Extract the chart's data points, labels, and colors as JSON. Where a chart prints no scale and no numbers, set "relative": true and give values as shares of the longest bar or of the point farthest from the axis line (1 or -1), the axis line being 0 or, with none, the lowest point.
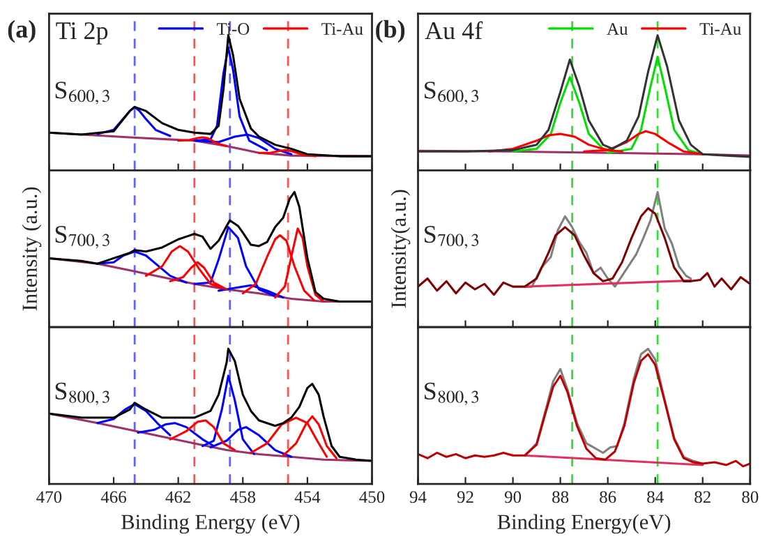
{
  "chart_data": [
    {
      "type": "line",
      "relative": true,
      "annotations": [
        "(a)",
        "Ti 2p",
        "S$_{600,3}$"
      ],
      "xlim": [
        470,
        450
      ],
      "xticks": [
        470,
        466,
        462,
        458,
        454,
        450
      ],
      "tick_labels": false,
      "legend": "top right",
      "grid": false,
      "ref_lines": [
        {
          "axis": "x",
          "value": 464.7,
          "color": "#6060ff",
          "line_style": "dashed"
        },
        {
          "axis": "x",
          "value": 461.0,
          "color": "#ff5050",
          "line_style": "dashed"
        },
        {
          "axis": "x",
          "value": 458.8,
          "color": "#6060ff",
          "line_style": "dashed"
        },
        {
          "axis": "x",
          "value": 455.2,
          "color": "#ff5050",
          "line_style": "dashed"
        }
      ],
      "series": [
        {
          "color": "#a0306a",
          "x": [
            470,
            465,
            461,
            459,
            457,
            455,
            450
          ],
          "values": [
            0.28,
            0.245,
            0.22,
            0.18,
            0.13,
            0.11,
            0.105
          ]
        },
        {
          "color": "#0000ff",
          "x": [
            467,
            466,
            465.5,
            465,
            464.7,
            464.4,
            464,
            463.4,
            462.5
          ],
          "values": [
            0.27,
            0.3,
            0.37,
            0.44,
            0.47,
            0.44,
            0.38,
            0.3,
            0.255
          ]
        },
        {
          "name": "Ti-O",
          "color": "#0000ff",
          "x": [
            461,
            460,
            459.6,
            459.2,
            458.9,
            458.6,
            458.2,
            457.6,
            456.5
          ],
          "values": [
            0.22,
            0.23,
            0.33,
            0.72,
            0.91,
            0.74,
            0.4,
            0.22,
            0.15
          ]
        },
        {
          "color": "#0000ff",
          "x": [
            461,
            459.5,
            458.5,
            457.7,
            457,
            456,
            455
          ],
          "values": [
            0.22,
            0.21,
            0.25,
            0.265,
            0.24,
            0.16,
            0.12
          ]
        },
        {
          "name": "Ti-Au",
          "color": "#ff0000",
          "x": [
            462,
            461.3,
            460.8,
            460.5,
            460.2,
            459.6,
            459
          ],
          "values": [
            0.22,
            0.225,
            0.24,
            0.245,
            0.24,
            0.2,
            0.18
          ]
        },
        {
          "color": "#ff0000",
          "x": [
            457,
            456.3,
            455.7,
            455.3,
            454.9,
            454.3,
            453.5
          ],
          "values": [
            0.13,
            0.13,
            0.145,
            0.15,
            0.14,
            0.115,
            0.105
          ]
        },
        {
          "color": "#000000",
          "x": [
            470,
            468,
            466,
            465,
            464.7,
            464,
            463,
            462,
            461,
            460,
            459.5,
            459.2,
            458.9,
            458.6,
            458.2,
            457.5,
            457,
            456,
            455,
            454,
            452,
            450
          ],
          "values": [
            0.28,
            0.265,
            0.29,
            0.44,
            0.47,
            0.44,
            0.35,
            0.3,
            0.28,
            0.27,
            0.33,
            0.6,
            1.0,
            0.85,
            0.53,
            0.31,
            0.25,
            0.19,
            0.16,
            0.12,
            0.105,
            0.105
          ]
        }
      ]
    },
    {
      "type": "line",
      "relative": true,
      "annotations": [
        "S$_{700,3}$"
      ],
      "ylabel": "Intensity (a.u.)",
      "xlim": [
        470,
        450
      ],
      "xticks": [
        470,
        466,
        462,
        458,
        454,
        450
      ],
      "tick_labels": false,
      "grid": false,
      "ref_lines": [
        {
          "axis": "x",
          "value": 464.7,
          "color": "#6060ff",
          "line_style": "dashed"
        },
        {
          "axis": "x",
          "value": 461.0,
          "color": "#ff5050",
          "line_style": "dashed"
        },
        {
          "axis": "x",
          "value": 458.8,
          "color": "#6060ff",
          "line_style": "dashed"
        },
        {
          "axis": "x",
          "value": 455.2,
          "color": "#ff5050",
          "line_style": "dashed"
        }
      ],
      "series": [
        {
          "color": "#a0306a",
          "x": [
            470,
            467,
            465,
            463,
            461,
            459,
            457,
            455,
            453,
            450
          ],
          "values": [
            0.51,
            0.47,
            0.42,
            0.37,
            0.32,
            0.28,
            0.25,
            0.21,
            0.19,
            0.19
          ]
        },
        {
          "color": "#0000ff",
          "x": [
            467,
            466,
            465.4,
            464.7,
            464,
            463.3,
            462.5,
            461.5
          ],
          "values": [
            0.47,
            0.48,
            0.53,
            0.56,
            0.53,
            0.46,
            0.38,
            0.33
          ]
        },
        {
          "color": "#0000ff",
          "x": [
            461,
            460,
            459.5,
            458.9,
            458.3,
            457.8,
            457,
            456
          ],
          "values": [
            0.32,
            0.33,
            0.5,
            0.74,
            0.66,
            0.45,
            0.28,
            0.23
          ]
        },
        {
          "color": "#0000ff",
          "x": [
            459.5,
            458.5,
            457.5,
            456.5,
            455.5
          ],
          "values": [
            0.27,
            0.29,
            0.31,
            0.27,
            0.22
          ]
        },
        {
          "color": "#ff0000",
          "x": [
            464,
            463,
            462.4,
            461.9,
            461.4,
            460.7,
            460,
            459.3
          ],
          "values": [
            0.38,
            0.45,
            0.56,
            0.6,
            0.56,
            0.43,
            0.32,
            0.29
          ]
        },
        {
          "color": "#ff0000",
          "x": [
            462.5,
            461.7,
            461.2,
            460.8,
            460.4,
            459.8,
            459
          ],
          "values": [
            0.34,
            0.37,
            0.44,
            0.48,
            0.44,
            0.33,
            0.28
          ]
        },
        {
          "color": "#ff0000",
          "x": [
            458,
            457.2,
            456.5,
            456,
            455.7,
            455.3,
            454.8,
            454.2,
            453.6
          ],
          "values": [
            0.25,
            0.32,
            0.52,
            0.65,
            0.68,
            0.64,
            0.45,
            0.27,
            0.2
          ]
        },
        {
          "color": "#ff0000",
          "x": [
            456,
            455.4,
            455,
            454.6,
            454.3,
            454,
            453.5,
            453
          ],
          "values": [
            0.22,
            0.3,
            0.52,
            0.73,
            0.66,
            0.45,
            0.24,
            0.19
          ]
        },
        {
          "color": "#000000",
          "x": [
            470,
            468,
            467,
            466,
            465,
            464.7,
            464,
            463,
            462,
            461.5,
            461,
            460.5,
            460,
            459.5,
            459,
            458.8,
            458.3,
            458,
            457.5,
            457,
            456.5,
            456,
            455.5,
            455.1,
            454.8,
            454.5,
            454,
            453.5,
            453,
            452,
            450
          ],
          "values": [
            0.51,
            0.49,
            0.47,
            0.51,
            0.55,
            0.57,
            0.56,
            0.59,
            0.65,
            0.67,
            0.69,
            0.67,
            0.58,
            0.64,
            0.75,
            0.79,
            0.75,
            0.7,
            0.61,
            0.6,
            0.63,
            0.74,
            0.81,
            0.95,
            1.0,
            0.89,
            0.51,
            0.26,
            0.21,
            0.19,
            0.19
          ]
        }
      ]
    },
    {
      "type": "line",
      "relative": true,
      "annotations": [
        "S$_{800,3}$"
      ],
      "xlabel": "Binding Energy (eV)",
      "xlim": [
        470,
        450
      ],
      "xticks": [
        470,
        466,
        462,
        458,
        454,
        450
      ],
      "tick_labels": "x",
      "grid": false,
      "ref_lines": [
        {
          "axis": "x",
          "value": 464.7,
          "color": "#6060ff",
          "line_style": "dashed"
        },
        {
          "axis": "x",
          "value": 461.0,
          "color": "#ff5050",
          "line_style": "dashed"
        },
        {
          "axis": "x",
          "value": 458.8,
          "color": "#6060ff",
          "line_style": "dashed"
        },
        {
          "axis": "x",
          "value": 455.2,
          "color": "#ff5050",
          "line_style": "dashed"
        }
      ],
      "series": [
        {
          "color": "#a0306a",
          "x": [
            470,
            467,
            465,
            463,
            461,
            459,
            457,
            455,
            453,
            450
          ],
          "values": [
            0.52,
            0.45,
            0.4,
            0.35,
            0.3,
            0.25,
            0.22,
            0.2,
            0.18,
            0.17
          ]
        },
        {
          "color": "#0000ff",
          "x": [
            467,
            466,
            465.3,
            464.7,
            464,
            463.3,
            462.5
          ],
          "values": [
            0.45,
            0.48,
            0.55,
            0.59,
            0.54,
            0.45,
            0.36
          ]
        },
        {
          "color": "#0000ff",
          "x": [
            464.5,
            463.5,
            462.8,
            462.2,
            461.5,
            460.5,
            459.8
          ],
          "values": [
            0.38,
            0.4,
            0.44,
            0.45,
            0.42,
            0.33,
            0.28
          ]
        },
        {
          "color": "#0000ff",
          "x": [
            460.5,
            459.8,
            459.3,
            458.9,
            458.5,
            458,
            457.3
          ],
          "values": [
            0.28,
            0.32,
            0.55,
            0.8,
            0.62,
            0.33,
            0.22
          ]
        },
        {
          "color": "#0000ff",
          "x": [
            460,
            459,
            458.3,
            457.8,
            457,
            456,
            455
          ],
          "values": [
            0.27,
            0.32,
            0.4,
            0.42,
            0.36,
            0.25,
            0.2
          ]
        },
        {
          "color": "#ff0000",
          "x": [
            462.5,
            461.5,
            460.8,
            460.3,
            459.8,
            459.2,
            458.5
          ],
          "values": [
            0.33,
            0.39,
            0.46,
            0.47,
            0.42,
            0.3,
            0.25
          ]
        },
        {
          "color": "#ff0000",
          "x": [
            457.5,
            456.5,
            455.6,
            454.7,
            454,
            453.4,
            452.8
          ],
          "values": [
            0.23,
            0.3,
            0.44,
            0.49,
            0.45,
            0.32,
            0.2
          ]
        },
        {
          "color": "#ff0000",
          "x": [
            455.5,
            454.7,
            454.1,
            453.7,
            453.3,
            452.8,
            452.2
          ],
          "values": [
            0.21,
            0.3,
            0.44,
            0.5,
            0.44,
            0.28,
            0.19
          ]
        },
        {
          "color": "#000000",
          "x": [
            470,
            468,
            466,
            465,
            464.7,
            464,
            463,
            462,
            461,
            460,
            459.5,
            459,
            458.9,
            458.5,
            458,
            457.5,
            457,
            456,
            455.5,
            455,
            454.5,
            454,
            453.7,
            453.3,
            453,
            452.5,
            452,
            451,
            450
          ],
          "values": [
            0.52,
            0.49,
            0.49,
            0.55,
            0.6,
            0.55,
            0.49,
            0.49,
            0.49,
            0.54,
            0.66,
            0.9,
            1.0,
            0.91,
            0.66,
            0.54,
            0.47,
            0.43,
            0.45,
            0.49,
            0.57,
            0.71,
            0.74,
            0.66,
            0.5,
            0.28,
            0.2,
            0.18,
            0.17
          ]
        }
      ]
    },
    {
      "type": "line",
      "relative": true,
      "annotations": [
        "(b)",
        "Au 4f",
        "S$_{600,3}$"
      ],
      "xlim": [
        94,
        80
      ],
      "xticks": [
        94,
        92,
        90,
        88,
        86,
        84,
        82,
        80
      ],
      "tick_labels": false,
      "legend": "top right",
      "grid": false,
      "ref_lines": [
        {
          "axis": "x",
          "value": 87.5,
          "color": "#30e030",
          "line_style": "dashed"
        },
        {
          "axis": "x",
          "value": 83.9,
          "color": "#30e030",
          "line_style": "dashed"
        }
      ],
      "series": [
        {
          "color": "#a0306a",
          "x": [
            94,
            90,
            86,
            82,
            80
          ],
          "values": [
            0.145,
            0.14,
            0.13,
            0.12,
            0.11
          ]
        },
        {
          "name": "Au",
          "color": "#00e000",
          "x": [
            90,
            89,
            88.4,
            88,
            87.6,
            87.2,
            86.8,
            86.2,
            85.5
          ],
          "values": [
            0.14,
            0.16,
            0.27,
            0.5,
            0.69,
            0.5,
            0.27,
            0.16,
            0.14
          ]
        },
        {
          "color": "#00e000",
          "x": [
            86,
            85,
            84.6,
            84.2,
            83.9,
            83.6,
            83.2,
            82.6,
            82
          ],
          "values": [
            0.13,
            0.16,
            0.3,
            0.62,
            0.84,
            0.62,
            0.3,
            0.15,
            0.12
          ]
        },
        {
          "name": "Ti-Au",
          "color": "#ff0000",
          "x": [
            91,
            90,
            89,
            88.5,
            88,
            87.4,
            86.8,
            86,
            85.4
          ],
          "values": [
            0.14,
            0.16,
            0.22,
            0.26,
            0.27,
            0.25,
            0.19,
            0.15,
            0.14
          ]
        },
        {
          "color": "#ff0000",
          "x": [
            87,
            86,
            85.2,
            84.7,
            84.4,
            84,
            83.4,
            82.8,
            82
          ],
          "values": [
            0.14,
            0.15,
            0.21,
            0.27,
            0.29,
            0.27,
            0.2,
            0.14,
            0.12
          ]
        },
        {
          "color": "#333333",
          "x": [
            94,
            92,
            90,
            89,
            88.5,
            88,
            87.6,
            87.2,
            86.8,
            86.2,
            85.8,
            85.2,
            84.7,
            84.3,
            83.9,
            83.5,
            83,
            82.5,
            82,
            81,
            80
          ],
          "values": [
            0.14,
            0.14,
            0.15,
            0.19,
            0.3,
            0.58,
            0.82,
            0.62,
            0.37,
            0.19,
            0.16,
            0.22,
            0.4,
            0.73,
            1.0,
            0.77,
            0.37,
            0.19,
            0.12,
            0.11,
            0.1
          ]
        }
      ]
    },
    {
      "type": "line",
      "relative": true,
      "annotations": [
        "S$_{700,3}$"
      ],
      "ylabel": "Intensity(a.u.)",
      "xlim": [
        94,
        80
      ],
      "xticks": [
        94,
        92,
        90,
        88,
        86,
        84,
        82,
        80
      ],
      "tick_labels": false,
      "grid": false,
      "ref_lines": [
        {
          "axis": "x",
          "value": 87.5,
          "color": "#30e030",
          "line_style": "dashed"
        },
        {
          "axis": "x",
          "value": 83.9,
          "color": "#30e030",
          "line_style": "dashed"
        }
      ],
      "series": [
        {
          "color": "#808080",
          "x": [
            89.5,
            89.2,
            88.8,
            88.4,
            88.1,
            87.8,
            87.5,
            87.2,
            86.9,
            86.6,
            86.3,
            86,
            85.7,
            85.4,
            85.1,
            84.8,
            84.5,
            84.2,
            83.9,
            83.6,
            83.3,
            83.0,
            82.7,
            82.5
          ],
          "values": [
            0.3,
            0.3,
            0.44,
            0.52,
            0.72,
            0.82,
            0.74,
            0.63,
            0.55,
            0.4,
            0.44,
            0.36,
            0.3,
            0.38,
            0.46,
            0.54,
            0.66,
            0.79,
            1.0,
            0.73,
            0.62,
            0.45,
            0.38,
            0.36
          ]
        },
        {
          "color": "#e03060",
          "x": [
            89.5,
            82.5
          ],
          "values": [
            0.3,
            0.345
          ]
        },
        {
          "color": "#800000",
          "x": [
            94,
            93.6,
            93.2,
            92.8,
            92.4,
            92,
            91.6,
            91.2,
            90.8,
            90.4,
            90,
            89.5,
            89,
            88.5,
            88.2,
            87.8,
            87.4,
            87,
            86.6,
            86.2,
            85.8,
            85.4,
            85,
            84.6,
            84.3,
            84,
            83.6,
            83.2,
            82.8,
            82.5,
            82.1,
            81.8,
            81.5,
            81.2,
            80.8,
            80.4,
            80
          ],
          "values": [
            0.3,
            0.36,
            0.27,
            0.34,
            0.25,
            0.33,
            0.28,
            0.32,
            0.24,
            0.33,
            0.3,
            0.3,
            0.36,
            0.55,
            0.68,
            0.74,
            0.68,
            0.53,
            0.4,
            0.34,
            0.36,
            0.48,
            0.66,
            0.82,
            0.88,
            0.84,
            0.66,
            0.44,
            0.34,
            0.34,
            0.35,
            0.4,
            0.3,
            0.36,
            0.28,
            0.37,
            0.32
          ]
        }
      ]
    },
    {
      "type": "line",
      "relative": true,
      "annotations": [
        "S$_{800,3}$"
      ],
      "xlabel": "Binding Energy(eV)",
      "xlim": [
        94,
        80
      ],
      "xticks": [
        94,
        92,
        90,
        88,
        86,
        84,
        82,
        80
      ],
      "tick_labels": "x",
      "grid": false,
      "ref_lines": [
        {
          "axis": "x",
          "value": 87.5,
          "color": "#30e030",
          "line_style": "dashed"
        },
        {
          "axis": "x",
          "value": 83.9,
          "color": "#30e030",
          "line_style": "dashed"
        }
      ],
      "series": [
        {
          "color": "#808080",
          "x": [
            89.5,
            89,
            88.6,
            88.3,
            88.0,
            87.7,
            87.3,
            86.9,
            86.5,
            86.2,
            85.9,
            85.6,
            85.3,
            84.9,
            84.6,
            84.3,
            84,
            83.6,
            83.2,
            82.8,
            82.4,
            82
          ],
          "values": [
            0.21,
            0.3,
            0.56,
            0.76,
            0.85,
            0.7,
            0.45,
            0.3,
            0.26,
            0.23,
            0.27,
            0.28,
            0.45,
            0.78,
            0.96,
            1.0,
            0.92,
            0.62,
            0.34,
            0.2,
            0.17,
            0.15
          ]
        },
        {
          "color": "#e03060",
          "x": [
            89.5,
            82
          ],
          "values": [
            0.21,
            0.14
          ]
        },
        {
          "color": "#c00000",
          "x": [
            94,
            93.6,
            93.2,
            92.8,
            92.4,
            92,
            91.6,
            91.2,
            90.8,
            90.4,
            90,
            89.5,
            89,
            88.6,
            88.3,
            88.0,
            87.7,
            87.3,
            86.9,
            86.5,
            86.1,
            85.7,
            85.3,
            84.9,
            84.6,
            84.3,
            84,
            83.6,
            83.2,
            82.8,
            82.4,
            82,
            81.5,
            81,
            80.6,
            80.3,
            80
          ],
          "values": [
            0.22,
            0.19,
            0.23,
            0.2,
            0.22,
            0.19,
            0.21,
            0.2,
            0.21,
            0.23,
            0.21,
            0.21,
            0.29,
            0.54,
            0.72,
            0.8,
            0.68,
            0.43,
            0.26,
            0.19,
            0.18,
            0.24,
            0.43,
            0.75,
            0.91,
            0.96,
            0.88,
            0.61,
            0.33,
            0.19,
            0.16,
            0.15,
            0.16,
            0.14,
            0.17,
            0.13,
            0.15
          ]
        }
      ]
    }
  ]
}
